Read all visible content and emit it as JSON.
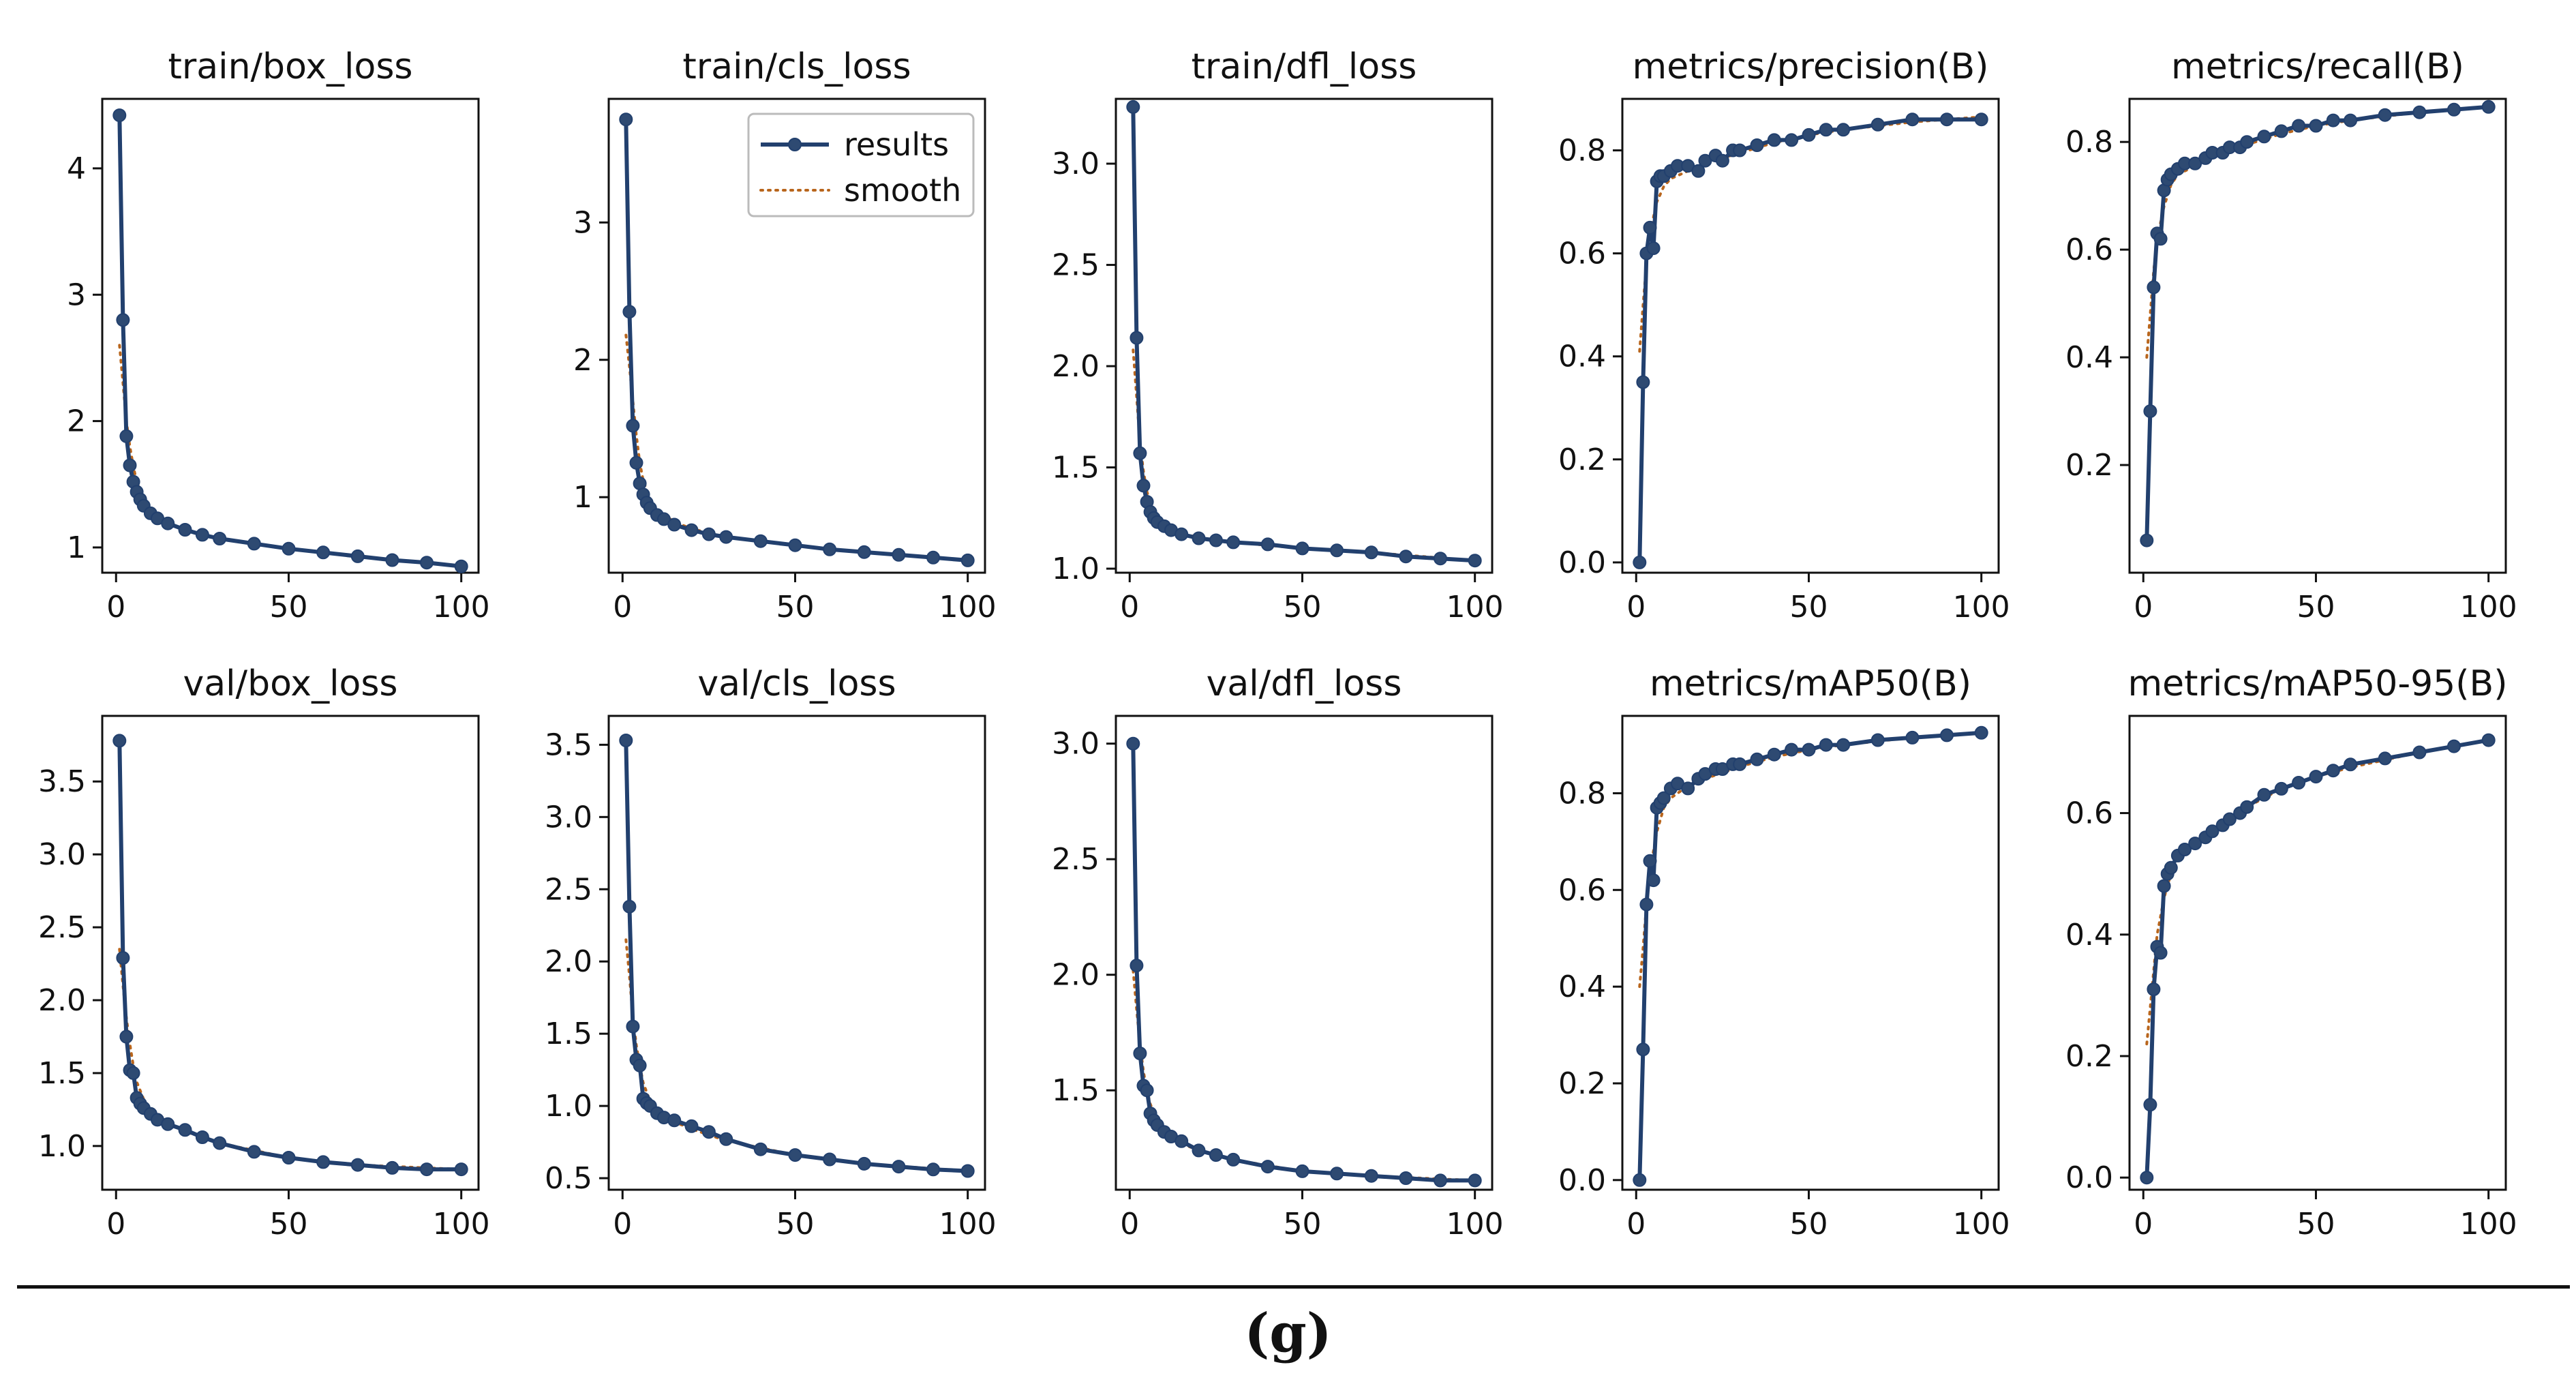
{
  "chart_data": [
    {
      "type": "line",
      "title": "train/box_loss",
      "xlim": [
        -4,
        105
      ],
      "ylim": [
        0.8,
        4.55
      ],
      "xticks": [
        0,
        50,
        100
      ],
      "yticks": [
        1,
        2,
        3,
        4
      ],
      "ytick_labels": [
        "1",
        "2",
        "3",
        "4"
      ],
      "legend": null,
      "series": [
        {
          "name": "results",
          "x": [
            1,
            2,
            3,
            4,
            5,
            6,
            7,
            8,
            10,
            12,
            15,
            20,
            25,
            30,
            40,
            50,
            60,
            70,
            80,
            90,
            100
          ],
          "values": [
            4.42,
            2.8,
            1.88,
            1.65,
            1.52,
            1.44,
            1.38,
            1.33,
            1.27,
            1.23,
            1.19,
            1.14,
            1.1,
            1.07,
            1.03,
            0.99,
            0.96,
            0.93,
            0.9,
            0.88,
            0.85
          ]
        },
        {
          "name": "smooth",
          "x": [
            1,
            2,
            3,
            4,
            5,
            6,
            8,
            10,
            15,
            20,
            30,
            50,
            70,
            100
          ],
          "values": [
            2.6,
            2.3,
            2.0,
            1.8,
            1.64,
            1.52,
            1.38,
            1.3,
            1.2,
            1.14,
            1.07,
            0.99,
            0.93,
            0.85
          ]
        }
      ]
    },
    {
      "type": "line",
      "title": "train/cls_loss",
      "xlim": [
        -4,
        105
      ],
      "ylim": [
        0.45,
        3.9
      ],
      "xticks": [
        0,
        50,
        100
      ],
      "yticks": [
        1,
        2,
        3
      ],
      "ytick_labels": [
        "1",
        "2",
        "3"
      ],
      "legend": {
        "position": "upper right",
        "entries": [
          "results",
          "smooth"
        ]
      },
      "series": [
        {
          "name": "results",
          "x": [
            1,
            2,
            3,
            4,
            5,
            6,
            7,
            8,
            10,
            12,
            15,
            20,
            25,
            30,
            40,
            50,
            60,
            70,
            80,
            90,
            100
          ],
          "values": [
            3.75,
            2.35,
            1.52,
            1.25,
            1.1,
            1.02,
            0.96,
            0.92,
            0.87,
            0.84,
            0.8,
            0.76,
            0.73,
            0.71,
            0.68,
            0.65,
            0.62,
            0.6,
            0.58,
            0.56,
            0.54
          ]
        },
        {
          "name": "smooth",
          "x": [
            1,
            2,
            3,
            4,
            5,
            6,
            8,
            10,
            15,
            20,
            30,
            50,
            70,
            100
          ],
          "values": [
            2.18,
            1.95,
            1.7,
            1.45,
            1.25,
            1.12,
            0.98,
            0.91,
            0.82,
            0.77,
            0.71,
            0.65,
            0.6,
            0.54
          ]
        }
      ]
    },
    {
      "type": "line",
      "title": "train/dfl_loss",
      "xlim": [
        -4,
        105
      ],
      "ylim": [
        0.98,
        3.32
      ],
      "xticks": [
        0,
        50,
        100
      ],
      "yticks": [
        1.0,
        1.5,
        2.0,
        2.5,
        3.0
      ],
      "ytick_labels": [
        "1.0",
        "1.5",
        "2.0",
        "2.5",
        "3.0"
      ],
      "legend": null,
      "series": [
        {
          "name": "results",
          "x": [
            1,
            2,
            3,
            4,
            5,
            6,
            7,
            8,
            10,
            12,
            15,
            20,
            25,
            30,
            40,
            50,
            60,
            70,
            80,
            90,
            100
          ],
          "values": [
            3.28,
            2.14,
            1.57,
            1.41,
            1.33,
            1.28,
            1.25,
            1.23,
            1.21,
            1.19,
            1.17,
            1.15,
            1.14,
            1.13,
            1.12,
            1.1,
            1.09,
            1.08,
            1.06,
            1.05,
            1.04
          ]
        },
        {
          "name": "smooth",
          "x": [
            1,
            2,
            3,
            4,
            5,
            6,
            8,
            10,
            15,
            20,
            30,
            50,
            70,
            100
          ],
          "values": [
            2.08,
            1.85,
            1.62,
            1.48,
            1.38,
            1.32,
            1.26,
            1.22,
            1.18,
            1.15,
            1.13,
            1.1,
            1.08,
            1.04
          ]
        }
      ]
    },
    {
      "type": "line",
      "title": "metrics/precision(B)",
      "xlim": [
        -4,
        105
      ],
      "ylim": [
        -0.02,
        0.9
      ],
      "xticks": [
        0,
        50,
        100
      ],
      "yticks": [
        0.0,
        0.2,
        0.4,
        0.6,
        0.8
      ],
      "ytick_labels": [
        "0.0",
        "0.2",
        "0.4",
        "0.6",
        "0.8"
      ],
      "legend": null,
      "series": [
        {
          "name": "results",
          "x": [
            1,
            2,
            3,
            4,
            5,
            6,
            7,
            8,
            10,
            12,
            15,
            18,
            20,
            23,
            25,
            28,
            30,
            35,
            40,
            45,
            50,
            55,
            60,
            70,
            80,
            90,
            100
          ],
          "values": [
            0.0,
            0.35,
            0.6,
            0.65,
            0.61,
            0.74,
            0.75,
            0.75,
            0.76,
            0.77,
            0.77,
            0.76,
            0.78,
            0.79,
            0.78,
            0.8,
            0.8,
            0.81,
            0.82,
            0.82,
            0.83,
            0.84,
            0.84,
            0.85,
            0.86,
            0.86,
            0.86
          ]
        },
        {
          "name": "smooth",
          "x": [
            1,
            2,
            3,
            4,
            6,
            8,
            10,
            15,
            20,
            30,
            40,
            50,
            60,
            80,
            100
          ],
          "values": [
            0.41,
            0.5,
            0.58,
            0.64,
            0.7,
            0.73,
            0.745,
            0.76,
            0.775,
            0.795,
            0.815,
            0.83,
            0.84,
            0.855,
            0.865
          ]
        }
      ]
    },
    {
      "type": "line",
      "title": "metrics/recall(B)",
      "xlim": [
        -4,
        105
      ],
      "ylim": [
        0.0,
        0.88
      ],
      "xticks": [
        0,
        50,
        100
      ],
      "yticks": [
        0.2,
        0.4,
        0.6,
        0.8
      ],
      "ytick_labels": [
        "0.2",
        "0.4",
        "0.6",
        "0.8"
      ],
      "legend": null,
      "series": [
        {
          "name": "results",
          "x": [
            1,
            2,
            3,
            4,
            5,
            6,
            7,
            8,
            10,
            12,
            15,
            18,
            20,
            23,
            25,
            28,
            30,
            35,
            40,
            45,
            50,
            55,
            60,
            70,
            80,
            90,
            100
          ],
          "values": [
            0.06,
            0.3,
            0.53,
            0.63,
            0.62,
            0.71,
            0.73,
            0.74,
            0.75,
            0.76,
            0.76,
            0.77,
            0.78,
            0.78,
            0.79,
            0.79,
            0.8,
            0.81,
            0.82,
            0.83,
            0.83,
            0.84,
            0.84,
            0.85,
            0.855,
            0.86,
            0.865
          ]
        },
        {
          "name": "smooth",
          "x": [
            1,
            2,
            3,
            4,
            6,
            8,
            10,
            15,
            20,
            30,
            40,
            50,
            60,
            80,
            100
          ],
          "values": [
            0.4,
            0.48,
            0.56,
            0.62,
            0.68,
            0.72,
            0.74,
            0.755,
            0.77,
            0.795,
            0.815,
            0.83,
            0.84,
            0.855,
            0.865
          ]
        }
      ]
    },
    {
      "type": "line",
      "title": "val/box_loss",
      "xlim": [
        -4,
        105
      ],
      "ylim": [
        0.7,
        3.95
      ],
      "xticks": [
        0,
        50,
        100
      ],
      "yticks": [
        1.0,
        1.5,
        2.0,
        2.5,
        3.0,
        3.5
      ],
      "ytick_labels": [
        "1.0",
        "1.5",
        "2.0",
        "2.5",
        "3.0",
        "3.5"
      ],
      "legend": null,
      "series": [
        {
          "name": "results",
          "x": [
            1,
            2,
            3,
            4,
            5,
            6,
            7,
            8,
            10,
            12,
            15,
            20,
            25,
            30,
            40,
            50,
            60,
            70,
            80,
            90,
            100
          ],
          "values": [
            3.78,
            2.29,
            1.75,
            1.52,
            1.5,
            1.33,
            1.29,
            1.26,
            1.22,
            1.18,
            1.15,
            1.11,
            1.06,
            1.02,
            0.96,
            0.92,
            0.89,
            0.87,
            0.85,
            0.84,
            0.84
          ]
        },
        {
          "name": "smooth",
          "x": [
            1,
            2,
            3,
            4,
            5,
            6,
            8,
            10,
            15,
            20,
            30,
            50,
            70,
            100
          ],
          "values": [
            2.35,
            2.1,
            1.88,
            1.7,
            1.55,
            1.44,
            1.32,
            1.25,
            1.16,
            1.1,
            1.02,
            0.92,
            0.87,
            0.84
          ]
        }
      ]
    },
    {
      "type": "line",
      "title": "val/cls_loss",
      "xlim": [
        -4,
        105
      ],
      "ylim": [
        0.42,
        3.7
      ],
      "xticks": [
        0,
        50,
        100
      ],
      "yticks": [
        0.5,
        1.0,
        1.5,
        2.0,
        2.5,
        3.0,
        3.5
      ],
      "ytick_labels": [
        "0.5",
        "1.0",
        "1.5",
        "2.0",
        "2.5",
        "3.0",
        "3.5"
      ],
      "legend": null,
      "series": [
        {
          "name": "results",
          "x": [
            1,
            2,
            3,
            4,
            5,
            6,
            7,
            8,
            10,
            12,
            15,
            20,
            25,
            30,
            40,
            50,
            60,
            70,
            80,
            90,
            100
          ],
          "values": [
            3.53,
            2.38,
            1.55,
            1.32,
            1.28,
            1.05,
            1.02,
            1.0,
            0.95,
            0.92,
            0.9,
            0.86,
            0.82,
            0.77,
            0.7,
            0.66,
            0.63,
            0.6,
            0.58,
            0.56,
            0.55
          ]
        },
        {
          "name": "smooth",
          "x": [
            1,
            2,
            3,
            4,
            5,
            6,
            8,
            10,
            15,
            20,
            30,
            50,
            70,
            100
          ],
          "values": [
            2.15,
            1.9,
            1.62,
            1.42,
            1.28,
            1.16,
            1.03,
            0.97,
            0.89,
            0.84,
            0.76,
            0.66,
            0.6,
            0.55
          ]
        }
      ]
    },
    {
      "type": "line",
      "title": "val/dfl_loss",
      "xlim": [
        -4,
        105
      ],
      "ylim": [
        1.07,
        3.12
      ],
      "xticks": [
        0,
        50,
        100
      ],
      "yticks": [
        1.5,
        2.0,
        2.5,
        3.0
      ],
      "ytick_labels": [
        "1.5",
        "2.0",
        "2.5",
        "3.0"
      ],
      "legend": null,
      "series": [
        {
          "name": "results",
          "x": [
            1,
            2,
            3,
            4,
            5,
            6,
            7,
            8,
            10,
            12,
            15,
            20,
            25,
            30,
            40,
            50,
            60,
            70,
            80,
            90,
            100
          ],
          "values": [
            3.0,
            2.04,
            1.66,
            1.52,
            1.5,
            1.4,
            1.37,
            1.35,
            1.32,
            1.3,
            1.28,
            1.24,
            1.22,
            1.2,
            1.17,
            1.15,
            1.14,
            1.13,
            1.12,
            1.11,
            1.11
          ]
        },
        {
          "name": "smooth",
          "x": [
            1,
            2,
            3,
            4,
            5,
            6,
            8,
            10,
            15,
            20,
            30,
            50,
            70,
            100
          ],
          "values": [
            2.02,
            1.85,
            1.7,
            1.58,
            1.5,
            1.44,
            1.37,
            1.33,
            1.27,
            1.24,
            1.2,
            1.15,
            1.13,
            1.11
          ]
        }
      ]
    },
    {
      "type": "line",
      "title": "metrics/mAP50(B)",
      "xlim": [
        -4,
        105
      ],
      "ylim": [
        -0.02,
        0.96
      ],
      "xticks": [
        0,
        50,
        100
      ],
      "yticks": [
        0.0,
        0.2,
        0.4,
        0.6,
        0.8
      ],
      "ytick_labels": [
        "0.0",
        "0.2",
        "0.4",
        "0.6",
        "0.8"
      ],
      "legend": null,
      "series": [
        {
          "name": "results",
          "x": [
            1,
            2,
            3,
            4,
            5,
            6,
            7,
            8,
            10,
            12,
            15,
            18,
            20,
            23,
            25,
            28,
            30,
            35,
            40,
            45,
            50,
            55,
            60,
            70,
            80,
            90,
            100
          ],
          "values": [
            0.0,
            0.27,
            0.57,
            0.66,
            0.62,
            0.77,
            0.78,
            0.79,
            0.81,
            0.82,
            0.81,
            0.83,
            0.84,
            0.85,
            0.85,
            0.86,
            0.86,
            0.87,
            0.88,
            0.89,
            0.89,
            0.9,
            0.9,
            0.91,
            0.915,
            0.92,
            0.925
          ]
        },
        {
          "name": "smooth",
          "x": [
            1,
            2,
            3,
            4,
            6,
            8,
            10,
            15,
            20,
            30,
            40,
            50,
            60,
            80,
            100
          ],
          "values": [
            0.4,
            0.48,
            0.57,
            0.64,
            0.72,
            0.77,
            0.79,
            0.815,
            0.83,
            0.855,
            0.875,
            0.89,
            0.9,
            0.915,
            0.925
          ]
        }
      ]
    },
    {
      "type": "line",
      "title": "metrics/mAP50-95(B)",
      "xlim": [
        -4,
        105
      ],
      "ylim": [
        -0.02,
        0.76
      ],
      "xticks": [
        0,
        50,
        100
      ],
      "yticks": [
        0.0,
        0.2,
        0.4,
        0.6
      ],
      "ytick_labels": [
        "0.0",
        "0.2",
        "0.4",
        "0.6"
      ],
      "legend": null,
      "series": [
        {
          "name": "results",
          "x": [
            1,
            2,
            3,
            4,
            5,
            6,
            7,
            8,
            10,
            12,
            15,
            18,
            20,
            23,
            25,
            28,
            30,
            35,
            40,
            45,
            50,
            55,
            60,
            70,
            80,
            90,
            100
          ],
          "values": [
            0.0,
            0.12,
            0.31,
            0.38,
            0.37,
            0.48,
            0.5,
            0.51,
            0.53,
            0.54,
            0.55,
            0.56,
            0.57,
            0.58,
            0.59,
            0.6,
            0.61,
            0.63,
            0.64,
            0.65,
            0.66,
            0.67,
            0.68,
            0.69,
            0.7,
            0.71,
            0.72
          ]
        },
        {
          "name": "smooth",
          "x": [
            1,
            2,
            3,
            4,
            6,
            8,
            10,
            15,
            20,
            30,
            40,
            50,
            60,
            80,
            100
          ],
          "values": [
            0.22,
            0.28,
            0.34,
            0.4,
            0.46,
            0.5,
            0.52,
            0.55,
            0.57,
            0.61,
            0.64,
            0.66,
            0.675,
            0.7,
            0.72
          ]
        }
      ]
    }
  ],
  "caption": "(g)"
}
